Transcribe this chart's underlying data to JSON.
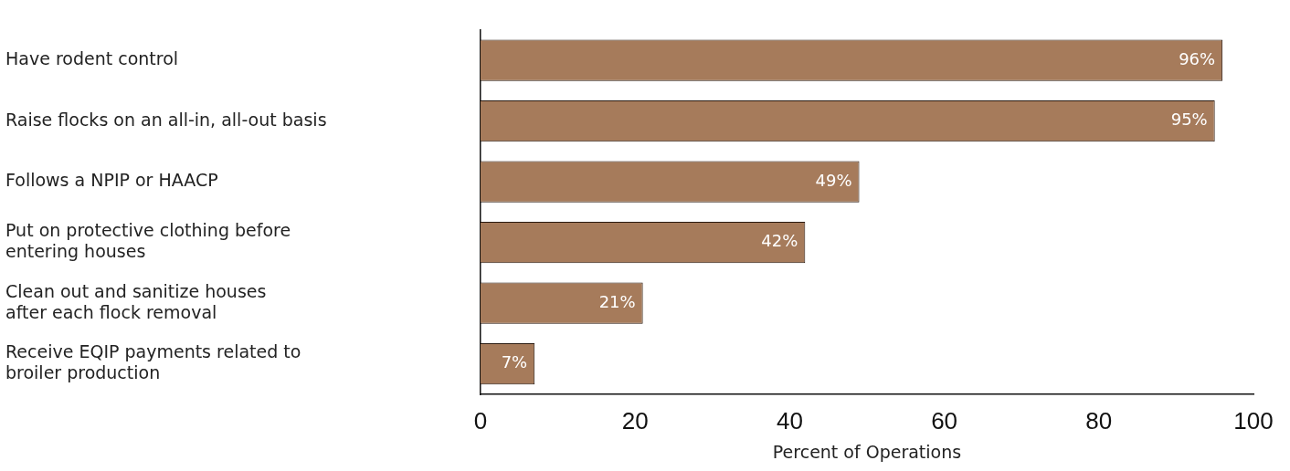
{
  "chart_data": {
    "type": "bar",
    "orientation": "horizontal",
    "categories": [
      "Have rodent control",
      "Raise flocks on an all-in, all-out basis",
      "Follows a NPIP or HAACP",
      "Put on protective clothing before\nentering houses",
      "Clean out and sanitize houses\nafter each flock removal",
      "Receive EQIP payments related to\nbroiler production"
    ],
    "values": [
      96,
      95,
      49,
      42,
      21,
      7
    ],
    "value_labels": [
      "96%",
      "95%",
      "49%",
      "42%",
      "21%",
      "7%"
    ],
    "color": "#a67b5b",
    "xlabel": "Percent of Operations",
    "xlim": [
      0,
      100
    ],
    "xticks": [
      0,
      20,
      40,
      60,
      80,
      100
    ],
    "grid": false,
    "legend": false
  }
}
